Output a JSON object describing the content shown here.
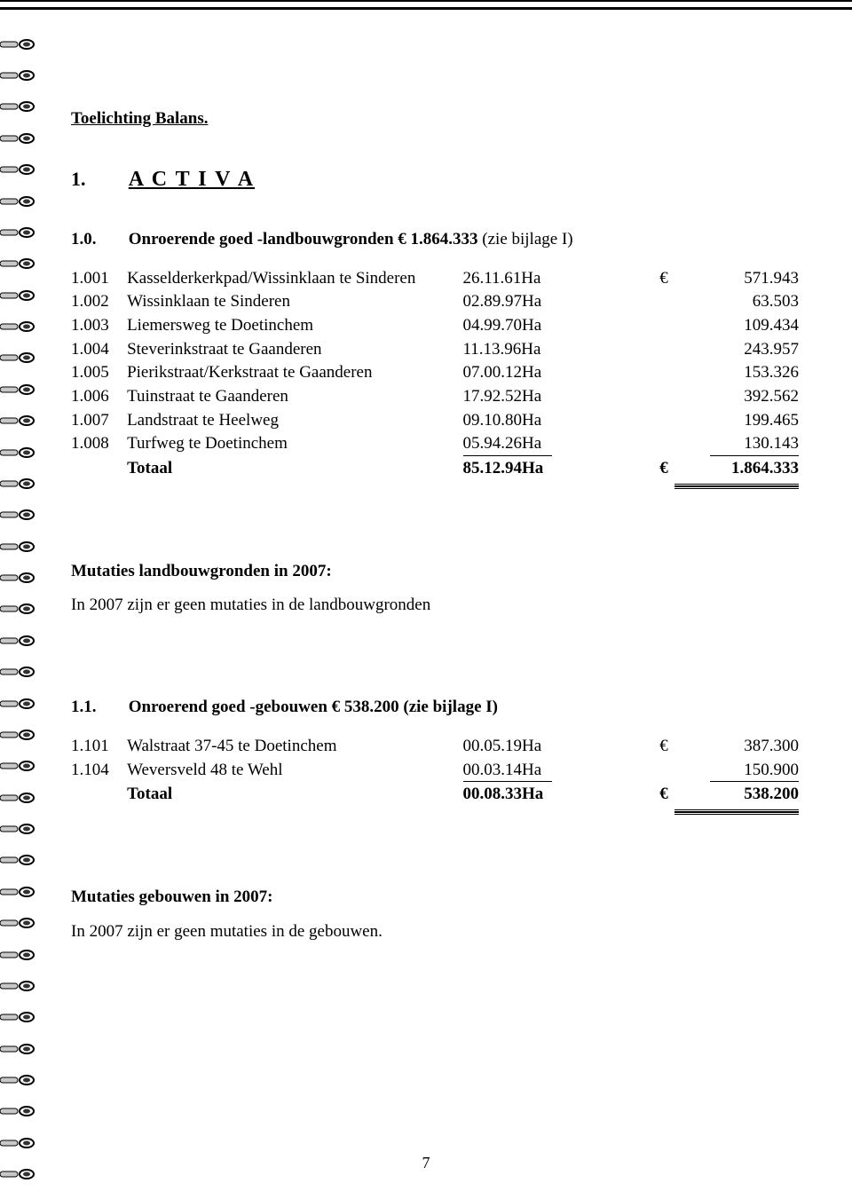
{
  "document": {
    "title": "Toelichting Balans.",
    "page_number": "7"
  },
  "section1": {
    "number": "1.",
    "title": "A C T I V A"
  },
  "sub10": {
    "number": "1.0.",
    "heading_prefix": "Onroerende goed  -landbouwgronden  €  1.864.333",
    "heading_suffix": " (zie bijlage I)",
    "rows": [
      {
        "code": "1.001",
        "desc": "Kasselderkerkpad/Wissinklaan te Sinderen",
        "ha": "26.11.61Ha",
        "cur": "€",
        "val": "571.943",
        "last": false
      },
      {
        "code": "1.002",
        "desc": "Wissinklaan te Sinderen",
        "ha": "02.89.97Ha",
        "cur": "",
        "val": "63.503",
        "last": false
      },
      {
        "code": "1.003",
        "desc": "Liemersweg te Doetinchem",
        "ha": "04.99.70Ha",
        "cur": "",
        "val": "109.434",
        "last": false
      },
      {
        "code": "1.004",
        "desc": "Steverinkstraat te Gaanderen",
        "ha": "11.13.96Ha",
        "cur": "",
        "val": "243.957",
        "last": false
      },
      {
        "code": "1.005",
        "desc": "Pierikstraat/Kerkstraat te Gaanderen",
        "ha": "07.00.12Ha",
        "cur": "",
        "val": "153.326",
        "last": false
      },
      {
        "code": "1.006",
        "desc": "Tuinstraat  te Gaanderen",
        "ha": "17.92.52Ha",
        "cur": "",
        "val": "392.562",
        "last": false
      },
      {
        "code": "1.007",
        "desc": "Landstraat te Heelweg",
        "ha": "09.10.80Ha",
        "cur": "",
        "val": "199.465",
        "last": false
      },
      {
        "code": "1.008",
        "desc": "Turfweg te Doetinchem",
        "ha": "05.94.26Ha",
        "cur": "",
        "val": "130.143",
        "last": true
      }
    ],
    "total_label": "Totaal",
    "total_ha": "85.12.94Ha",
    "total_cur": "€",
    "total_val": "1.864.333"
  },
  "mut1": {
    "heading": "Mutaties landbouwgronden in 2007:",
    "body": "In 2007 zijn er geen mutaties in de landbouwgronden"
  },
  "sub11": {
    "number": "1.1.",
    "heading": "Onroerend goed -gebouwen  €  538.200 (zie bijlage I)",
    "rows": [
      {
        "code": "1.101",
        "desc": "Walstraat 37-45 te Doetinchem",
        "ha": "00.05.19Ha",
        "cur": "€",
        "val": "387.300",
        "last": false
      },
      {
        "code": "1.104",
        "desc": "Weversveld 48 te Wehl",
        "ha": "00.03.14Ha",
        "cur": "",
        "val": "150.900",
        "last": true
      }
    ],
    "total_label": "Totaal",
    "total_ha": "00.08.33Ha",
    "total_cur": "€",
    "total_val": "538.200"
  },
  "mut2": {
    "heading": "Mutaties gebouwen in 2007:",
    "body": "In 2007 zijn er geen mutaties in de gebouwen."
  },
  "style": {
    "ring_count": 37,
    "ring_stroke": "#000000",
    "ring_fill_light": "#c8c8c8",
    "ring_fill_dark": "#333333"
  }
}
